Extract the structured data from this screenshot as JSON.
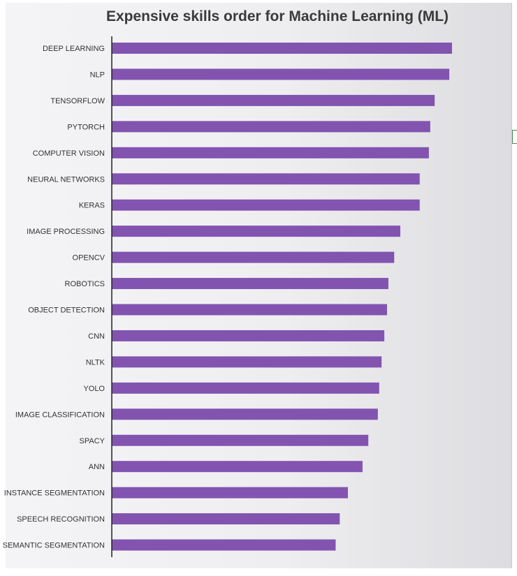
{
  "chart_data": {
    "type": "bar",
    "orientation": "horizontal",
    "title": "Expensive skills order for Machine Learning (ML)",
    "xlabel": "",
    "ylabel": "",
    "categories": [
      "DEEP LEARNING",
      "NLP",
      "TENSORFLOW",
      "PYTORCH",
      "COMPUTER VISION",
      "NEURAL NETWORKS",
      "KERAS",
      "IMAGE PROCESSING",
      "OPENCV",
      "ROBOTICS",
      "OBJECT DETECTION",
      "CNN",
      "NLTK",
      "YOLO",
      "IMAGE CLASSIFICATION",
      "SPACY",
      "ANN",
      "INSTANCE SEGMENTATION",
      "SPEECH RECOGNITION",
      "SEMANTIC SEGMENTATION"
    ],
    "values": [
      100,
      99.2,
      94.9,
      93.6,
      93.2,
      90.5,
      90.5,
      84.8,
      83.0,
      81.3,
      80.9,
      80.1,
      79.3,
      78.6,
      78.2,
      75.4,
      73.7,
      69.4,
      67.0,
      65.8
    ],
    "xlim": [
      0,
      100
    ],
    "grid": false,
    "legend": "none",
    "bar_color": "#8254b0",
    "axis_color": "#222222"
  }
}
